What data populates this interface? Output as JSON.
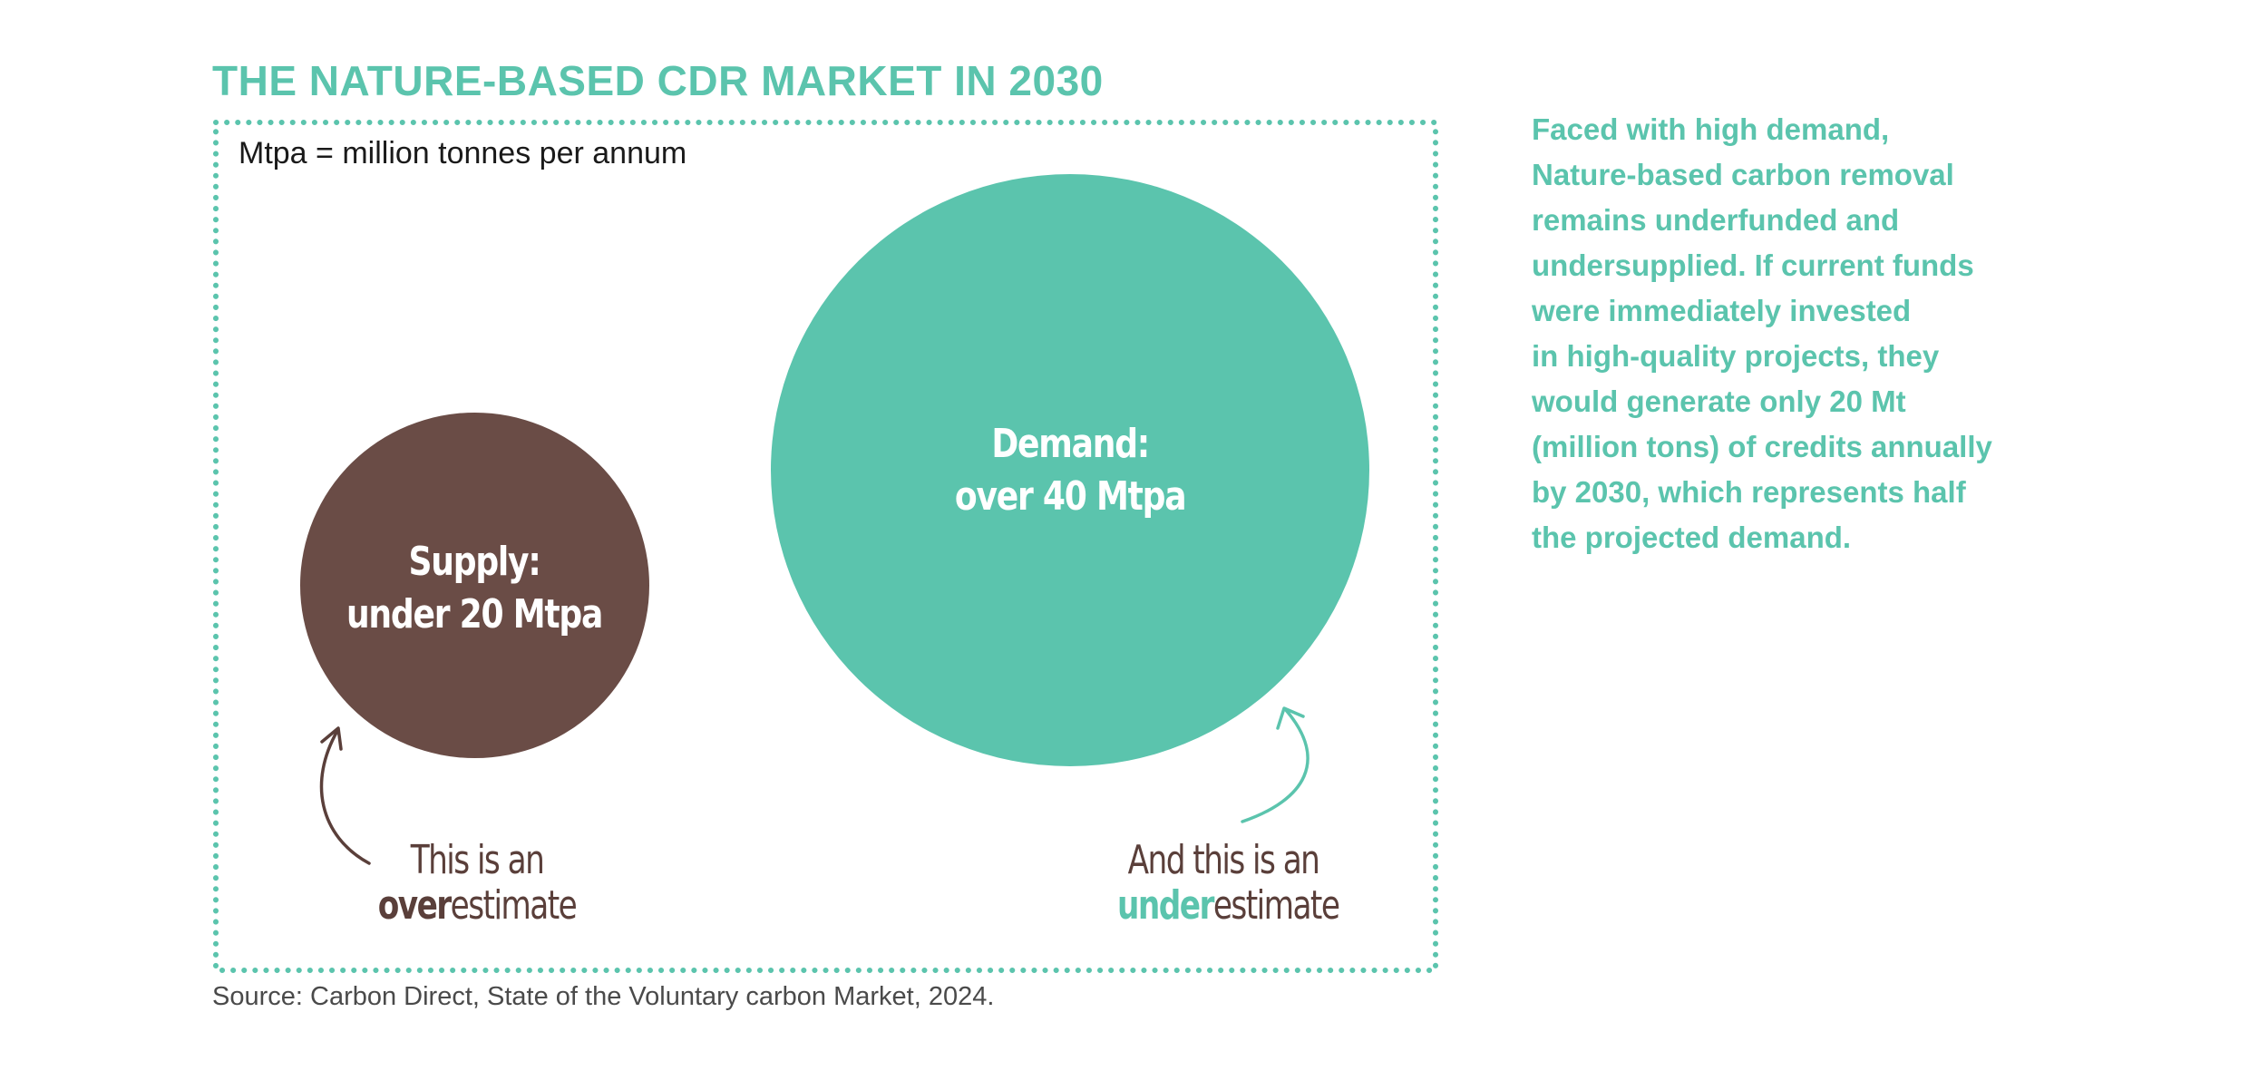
{
  "title": "THE NATURE-BASED CDR MARKET IN 2030",
  "unit_note": "Mtpa = million tonnes per annum",
  "colors": {
    "accent": "#5bc4ad",
    "supply": "#6a4c46",
    "text_dark": "#1a1a1a",
    "source_text": "#4a4a4a"
  },
  "supply": {
    "line1": "Supply:",
    "line2": "under 20 Mtpa",
    "value_mtpa": 20
  },
  "demand": {
    "line1": "Demand:",
    "line2": "over 40 Mtpa",
    "value_mtpa": 40
  },
  "overestimate_note": {
    "line1": "This is an",
    "emph": "over",
    "rest": "estimate"
  },
  "underestimate_note": {
    "line1": "And this is an",
    "emph": "under",
    "rest": "estimate"
  },
  "side_text_lines": [
    "Faced with high demand,",
    "Nature-based carbon removal",
    "remains underfunded and",
    "undersupplied. If current funds",
    "were immediately invested",
    "in high-quality projects, they",
    "would generate only 20 Mt",
    "(million tons) of credits annually",
    "by 2030, which represents half",
    "the projected demand."
  ],
  "source": "Source: Carbon Direct, State of the Voluntary carbon Market, 2024."
}
